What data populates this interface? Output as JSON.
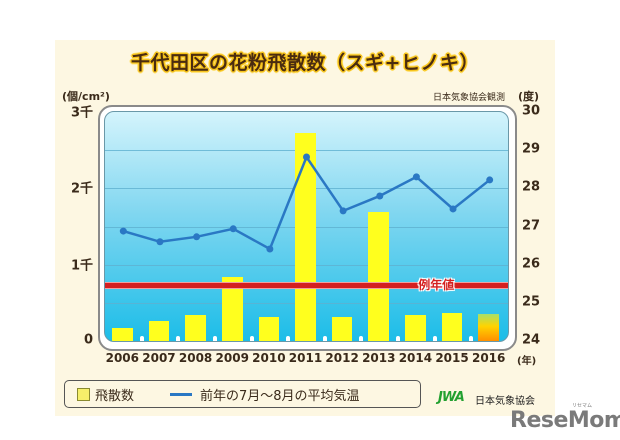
{
  "title": "千代田区の花粉飛散数（スギ+ヒノキ）",
  "source": "日本気象協会観測",
  "left_unit": "(個/cm²)",
  "right_unit": "(度)",
  "x_unit": "(年)",
  "average_label": "例年値",
  "legend": {
    "bars": "飛散数",
    "line": "前年の7月～8月の平均気温"
  },
  "logo": {
    "mark": "JWA",
    "name": "日本気象協会"
  },
  "watermark": {
    "text": "ReseMom",
    "small": "リセマム"
  },
  "colors": {
    "bar": "#ffff1e",
    "line": "#2a78c4",
    "average": "#d42020",
    "panel": "#fdf7e2"
  },
  "chart_data": {
    "type": "bar+line",
    "title": "千代田区の花粉飛散数（スギ+ヒノキ）",
    "categories": [
      "2006",
      "2007",
      "2008",
      "2009",
      "2010",
      "2011",
      "2012",
      "2013",
      "2014",
      "2015",
      "2016"
    ],
    "xlabel": "(年)",
    "ylabel_left": "(個/cm²)",
    "ylabel_right": "(度)",
    "ylim_left": [
      0,
      3000
    ],
    "ylim_right": [
      24,
      30
    ],
    "yticks_left": [
      "0",
      "1千",
      "2千",
      "3千"
    ],
    "yticks_right": [
      "24",
      "25",
      "26",
      "27",
      "28",
      "29",
      "30"
    ],
    "grid": true,
    "legend_position": "bottom",
    "series": [
      {
        "name": "飛散数",
        "type": "bar",
        "axis": "left",
        "values": [
          170,
          260,
          340,
          835,
          310,
          2725,
          315,
          1690,
          340,
          365,
          350
        ],
        "note": "2016 is a forecast (gradient bar)"
      },
      {
        "name": "前年の7月～8月の平均気温",
        "type": "line",
        "axis": "right",
        "values": [
          26.88,
          26.6,
          26.73,
          26.94,
          26.41,
          28.82,
          27.41,
          27.8,
          28.3,
          27.46,
          28.22
        ]
      }
    ],
    "reference_lines": [
      {
        "label": "例年値",
        "axis": "left",
        "value": 730
      }
    ],
    "annotations": [
      "日本気象協会観測"
    ]
  }
}
